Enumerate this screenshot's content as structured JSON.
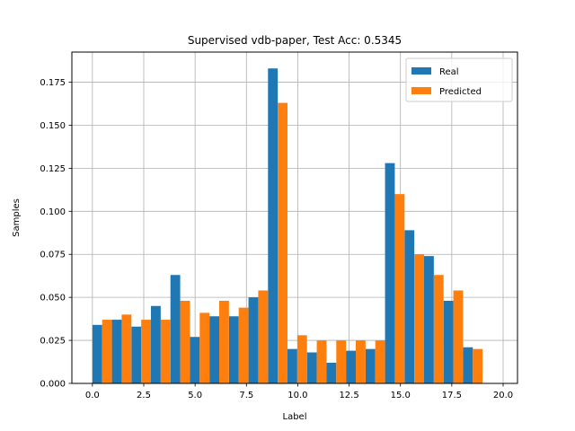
{
  "chart_data": {
    "type": "bar",
    "title": "Supervised vdb-paper, Test Acc: 0.5345",
    "xlabel": "Label",
    "ylabel": "Samples",
    "xlim": [
      -1,
      20.7
    ],
    "ylim": [
      0,
      0.1925
    ],
    "xticks": [
      0.0,
      2.5,
      5.0,
      7.5,
      10.0,
      12.5,
      15.0,
      17.5,
      20.0
    ],
    "xtick_labels": [
      "0.0",
      "2.5",
      "5.0",
      "7.5",
      "10.0",
      "12.5",
      "15.0",
      "17.5",
      "20.0"
    ],
    "yticks": [
      0.0,
      0.025,
      0.05,
      0.075,
      0.1,
      0.125,
      0.15,
      0.175
    ],
    "ytick_labels": [
      "0.000",
      "0.025",
      "0.050",
      "0.075",
      "0.100",
      "0.125",
      "0.150",
      "0.175"
    ],
    "grid": true,
    "legend_position": "top-right",
    "bin_edges": [
      0.0,
      0.95,
      1.9,
      2.85,
      3.8,
      4.75,
      5.7,
      6.65,
      7.6,
      8.55,
      9.5,
      10.45,
      11.4,
      12.35,
      13.3,
      14.25,
      15.2,
      16.15,
      17.1,
      18.05,
      19.0
    ],
    "series": [
      {
        "name": "Real",
        "color": "#1f77b4",
        "values": [
          0.034,
          0.037,
          0.033,
          0.045,
          0.063,
          0.027,
          0.039,
          0.039,
          0.05,
          0.183,
          0.02,
          0.018,
          0.012,
          0.019,
          0.02,
          0.128,
          0.089,
          0.074,
          0.048,
          0.021
        ]
      },
      {
        "name": "Predicted",
        "color": "#ff7f0e",
        "values": [
          0.037,
          0.04,
          0.037,
          0.037,
          0.048,
          0.041,
          0.048,
          0.044,
          0.054,
          0.163,
          0.028,
          0.025,
          0.025,
          0.025,
          0.025,
          0.11,
          0.075,
          0.063,
          0.054,
          0.02
        ]
      }
    ]
  }
}
